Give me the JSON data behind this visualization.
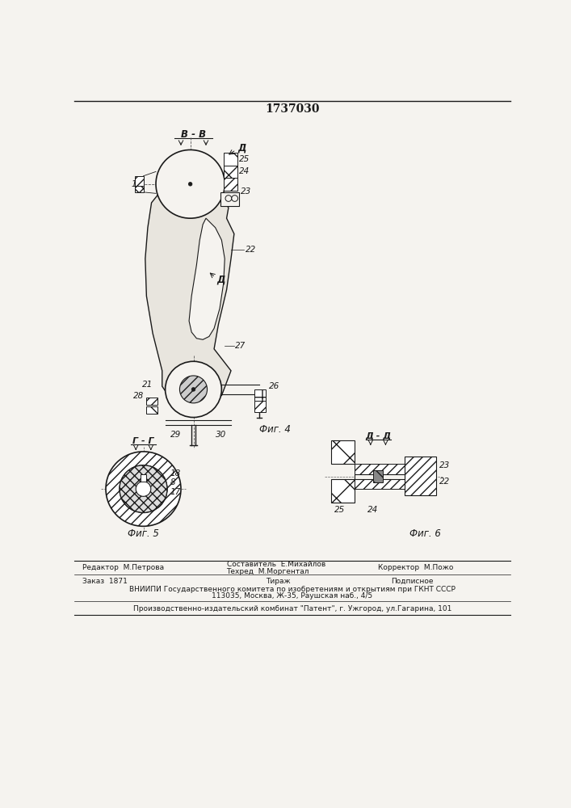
{
  "patent_number": "1737030",
  "background_color": "#f5f3ef",
  "title_fontsize": 10,
  "label_fontsize": 7.5,
  "small_fontsize": 6.5,
  "fig4_label": "Фиг. 4",
  "fig5_label": "Фиг. 5",
  "fig6_label": "Фиг. 6",
  "section_BB": "В - В",
  "section_DD": "Д - Д",
  "section_GG": "Г - Г",
  "line_color": "#1a1a1a",
  "hatch_color": "#1a1a1a",
  "note_D": "Д"
}
